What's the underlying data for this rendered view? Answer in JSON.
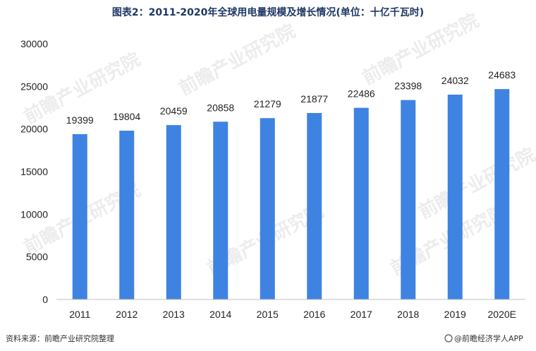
{
  "chart_data": {
    "type": "bar",
    "title": "图表2：2011-2020年全球用电量规模及增长情况(单位：十亿千瓦时)",
    "categories": [
      "2011",
      "2012",
      "2013",
      "2014",
      "2015",
      "2016",
      "2017",
      "2018",
      "2019",
      "2020E"
    ],
    "values": [
      19399,
      19804,
      20459,
      20858,
      21279,
      21877,
      22486,
      23398,
      24032,
      24683
    ],
    "ylim": [
      0,
      30000
    ],
    "yticks": [
      0,
      5000,
      10000,
      15000,
      20000,
      25000,
      30000
    ],
    "grid": false,
    "legend": "none",
    "bar_color": "#3e83e1"
  },
  "footer": {
    "source": "资料来源：前瞻产业研究院整理",
    "brand": "@前瞻经济学人APP"
  },
  "watermark": {
    "text": "前瞻产业研究院"
  }
}
